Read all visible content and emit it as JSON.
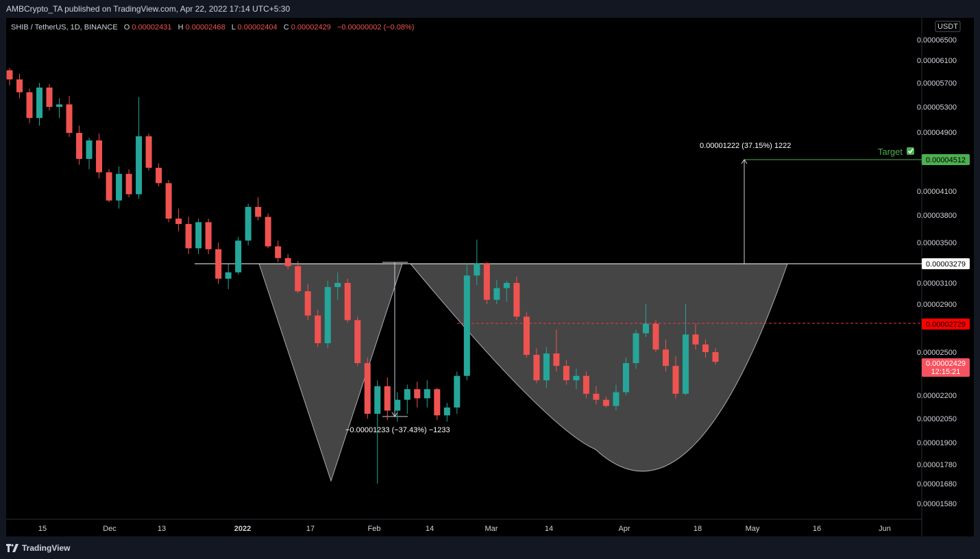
{
  "publisher_line": "AMBCrypto_TA published on TradingView.com, Apr 22, 2022 17:14 UTC+5:30",
  "brand": "TradingView",
  "legend": {
    "symbol": "SHIB / TetherUS, 1D, BINANCE",
    "o_label": "O",
    "o": "0.00002431",
    "h_label": "H",
    "h": "0.00002468",
    "l_label": "L",
    "l": "0.00002404",
    "c_label": "C",
    "c": "0.00002429",
    "change": "−0.00000002 (−0.08%)"
  },
  "colors": {
    "up": "#26a69a",
    "down": "#ef5350",
    "target": "#4caf50",
    "bg": "#000000"
  },
  "chart_data": {
    "type": "candlestick",
    "currency": "USDT",
    "y_ticks": [
      "0.00006500",
      "0.00006100",
      "0.00005700",
      "0.00005300",
      "0.00004900",
      "0.00004100",
      "0.00003800",
      "0.00003500",
      "0.00003100",
      "0.00002900",
      "0.00002500",
      "0.00002200",
      "0.00002050",
      "0.00001900",
      "0.00001780",
      "0.00001680",
      "0.00001580"
    ],
    "x_ticks": [
      "15",
      "Dec",
      "13",
      "2022",
      "17",
      "Feb",
      "14",
      "Mar",
      "14",
      "Apr",
      "18",
      "May",
      "16",
      "Jun"
    ],
    "x_ticks_bold": [
      "2022"
    ],
    "price_labels": {
      "target": "0.00004512",
      "neckline": "0.00003279",
      "red_line": "0.00002729",
      "last": "0.00002429",
      "countdown": "12:15:21"
    },
    "target_label": "Target",
    "up_measure_label": "0.00001222 (37.15%) 1222",
    "down_measure_label": "−0.00001233 (−37.43%) −1233",
    "candles": [
      [
        5.92e-05,
        5.96e-05,
        5.66e-05,
        5.76e-05
      ],
      [
        5.76e-05,
        5.86e-05,
        5.44e-05,
        5.54e-05
      ],
      [
        5.54e-05,
        5.6e-05,
        5.04e-05,
        5.12e-05
      ],
      [
        5.12e-05,
        5.7e-05,
        5e-05,
        5.62e-05
      ],
      [
        5.62e-05,
        5.68e-05,
        5.24e-05,
        5.3e-05
      ],
      [
        5.3e-05,
        5.44e-05,
        5.12e-05,
        5.34e-05
      ],
      [
        5.34e-05,
        5.48e-05,
        4.83e-05,
        4.89e-05
      ],
      [
        4.89e-05,
        5e-05,
        4.44e-05,
        4.52e-05
      ],
      [
        4.52e-05,
        4.82e-05,
        4.38e-05,
        4.78e-05
      ],
      [
        4.78e-05,
        4.88e-05,
        4.26e-05,
        4.34e-05
      ],
      [
        4.34e-05,
        4.38e-05,
        3.96e-05,
        3.98e-05
      ],
      [
        3.98e-05,
        4.42e-05,
        3.88e-05,
        4.32e-05
      ],
      [
        4.32e-05,
        4.38e-05,
        4.02e-05,
        4.06e-05
      ],
      [
        4.06e-05,
        5.46e-05,
        4e-05,
        4.84e-05
      ],
      [
        4.84e-05,
        4.88e-05,
        4.36e-05,
        4.4e-05
      ],
      [
        4.4e-05,
        4.46e-05,
        4.16e-05,
        4.2e-05
      ],
      [
        4.2e-05,
        4.24e-05,
        3.72e-05,
        3.76e-05
      ],
      [
        3.76e-05,
        3.88e-05,
        3.62e-05,
        3.7e-05
      ],
      [
        3.7e-05,
        3.78e-05,
        3.38e-05,
        3.44e-05
      ],
      [
        3.44e-05,
        3.76e-05,
        3.38e-05,
        3.72e-05
      ],
      [
        3.72e-05,
        3.76e-05,
        3.38e-05,
        3.43e-05
      ],
      [
        3.43e-05,
        3.5e-05,
        3.09e-05,
        3.14e-05
      ],
      [
        3.14e-05,
        3.28e-05,
        3.04e-05,
        3.2e-05
      ],
      [
        3.2e-05,
        3.56e-05,
        3.18e-05,
        3.52e-05
      ],
      [
        3.52e-05,
        3.94e-05,
        3.47e-05,
        3.9e-05
      ],
      [
        3.9e-05,
        4.02e-05,
        3.74e-05,
        3.78e-05
      ],
      [
        3.78e-05,
        3.82e-05,
        3.44e-05,
        3.46e-05
      ],
      [
        3.46e-05,
        3.52e-05,
        3.3e-05,
        3.34e-05
      ],
      [
        3.34e-05,
        3.38e-05,
        3.23e-05,
        3.26e-05
      ],
      [
        3.26e-05,
        3.31e-05,
        3e-05,
        3.02e-05
      ],
      [
        3.02e-05,
        3.09e-05,
        2.76e-05,
        2.8e-05
      ],
      [
        2.8e-05,
        2.85e-05,
        2.54e-05,
        2.57e-05
      ],
      [
        2.57e-05,
        3.12e-05,
        2.53e-05,
        3.06e-05
      ],
      [
        3.06e-05,
        3.2e-05,
        2.94e-05,
        3.1e-05
      ],
      [
        3.1e-05,
        3.14e-05,
        2.74e-05,
        2.76e-05
      ],
      [
        2.76e-05,
        2.79e-05,
        2.4e-05,
        2.42e-05
      ],
      [
        2.42e-05,
        2.46e-05,
        2.05e-05,
        2.08e-05
      ],
      [
        2.08e-05,
        2.3e-05,
        1.68e-05,
        2.26e-05
      ],
      [
        2.26e-05,
        2.32e-05,
        2.04e-05,
        2.1e-05
      ],
      [
        2.1e-05,
        2.22e-05,
        2.03e-05,
        2.17e-05
      ],
      [
        2.17e-05,
        2.27e-05,
        2.08e-05,
        2.24e-05
      ],
      [
        2.24e-05,
        2.29e-05,
        2.12e-05,
        2.18e-05
      ],
      [
        2.18e-05,
        2.3e-05,
        2.12e-05,
        2.24e-05
      ],
      [
        2.24e-05,
        2.25e-05,
        2.04e-05,
        2.07e-05
      ],
      [
        2.07e-05,
        2.15e-05,
        2.03e-05,
        2.12e-05
      ],
      [
        2.12e-05,
        2.36e-05,
        2.08e-05,
        2.33e-05
      ],
      [
        2.33e-05,
        3.29e-05,
        2.3e-05,
        3.17e-05
      ],
      [
        3.17e-05,
        3.53e-05,
        3.08e-05,
        3.29e-05
      ],
      [
        3.29e-05,
        3.3e-05,
        2.9e-05,
        2.94e-05
      ],
      [
        2.94e-05,
        3.13e-05,
        2.9e-05,
        3.05e-05
      ],
      [
        3.05e-05,
        3.12e-05,
        2.92e-05,
        3.1e-05
      ],
      [
        3.1e-05,
        3.16e-05,
        2.76e-05,
        2.79e-05
      ],
      [
        2.79e-05,
        2.83e-05,
        2.46e-05,
        2.48e-05
      ],
      [
        2.48e-05,
        2.53e-05,
        2.28e-05,
        2.3e-05
      ],
      [
        2.3e-05,
        2.54e-05,
        2.25e-05,
        2.49e-05
      ],
      [
        2.49e-05,
        2.68e-05,
        2.36e-05,
        2.4e-05
      ],
      [
        2.4e-05,
        2.44e-05,
        2.27e-05,
        2.3e-05
      ],
      [
        2.3e-05,
        2.38e-05,
        2.24e-05,
        2.33e-05
      ],
      [
        2.33e-05,
        2.36e-05,
        2.18e-05,
        2.21e-05
      ],
      [
        2.21e-05,
        2.26e-05,
        2.14e-05,
        2.17e-05
      ],
      [
        2.17e-05,
        2.19e-05,
        2.12e-05,
        2.13e-05
      ],
      [
        2.13e-05,
        2.27e-05,
        2.1e-05,
        2.22e-05
      ],
      [
        2.22e-05,
        2.46e-05,
        2.2e-05,
        2.42e-05
      ],
      [
        2.42e-05,
        2.68e-05,
        2.38e-05,
        2.65e-05
      ],
      [
        2.65e-05,
        2.9e-05,
        2.62e-05,
        2.73e-05
      ],
      [
        2.73e-05,
        2.76e-05,
        2.5e-05,
        2.52e-05
      ],
      [
        2.52e-05,
        2.6e-05,
        2.36e-05,
        2.4e-05
      ],
      [
        2.4e-05,
        2.47e-05,
        2.18e-05,
        2.21e-05
      ],
      [
        2.21e-05,
        2.9e-05,
        2.2e-05,
        2.64e-05
      ],
      [
        2.64e-05,
        2.73e-05,
        2.52e-05,
        2.56e-05
      ],
      [
        2.56e-05,
        2.6e-05,
        2.46e-05,
        2.5e-05
      ],
      [
        2.5e-05,
        2.53e-05,
        2.41e-05,
        2.429e-05
      ]
    ]
  }
}
